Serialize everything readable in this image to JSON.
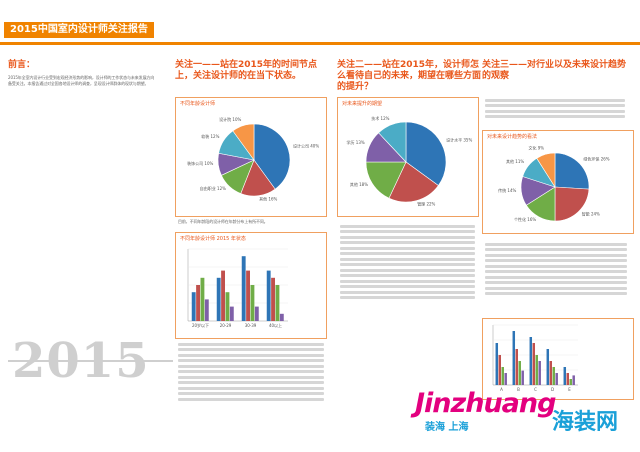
{
  "header": {
    "title": "2015中国室内设计师关注报告"
  },
  "intro": {
    "heading": "前言：",
    "text": "2015年全室内设计行业受到宏观经济形势的影响，设计师的工作状态与未来发展方向备受关注。本报告通过对全国各地设计师的调查，呈现设计师群体的现状与期望。"
  },
  "section1": {
    "heading": "关注一——站在2015年的时间节点上，关注设计师的在当下状态。",
    "caption": "目前，不同年龄段的设计师在年龄分布上有所不同。",
    "chart1_title": "不同年龄设计师",
    "chart2_title": "不同年龄设计师 2015 年状态"
  },
  "section2": {
    "heading": "关注二——站在2015年，设计师怎么看待自己的未来，期望在哪些方面的提升？",
    "chart_title": "对未来提升的期望"
  },
  "section3": {
    "heading": "关注三——对行业以及未来设计趋势的观察",
    "chart1_title": "对未来设计趋势的看法",
    "chart2_title": "未来设计方向"
  },
  "year_block": {
    "year": "2015"
  },
  "watermark": {
    "main": "Jinzhuang",
    "sub": "装海 上海",
    "cn": "海装网"
  },
  "colors": {
    "accent": "#f08300",
    "heading": "#e9571b",
    "blue": "#2e75b6",
    "green": "#70ad47",
    "red": "#c0504d",
    "purple": "#7f60a8",
    "teal": "#4bacc6",
    "orange": "#f79646"
  },
  "chart_data": [
    {
      "type": "pie",
      "categories": [
        "设计公司",
        "其他",
        "自由职业",
        "装饰公司",
        "软装",
        "设计院"
      ],
      "values": [
        40,
        16,
        12,
        10,
        12,
        10
      ]
    },
    {
      "type": "bar",
      "categories": [
        "20岁以下",
        "20-29",
        "30-39",
        "40以上"
      ],
      "series": [
        {
          "values": [
            20,
            30,
            45,
            35
          ]
        },
        {
          "values": [
            25,
            35,
            35,
            30
          ]
        },
        {
          "values": [
            30,
            20,
            25,
            25
          ]
        },
        {
          "values": [
            15,
            10,
            10,
            5
          ]
        }
      ]
    },
    {
      "type": "pie",
      "categories": [
        "设计水平",
        "管理",
        "其他",
        "学历",
        "技术"
      ],
      "values": [
        35,
        22,
        18,
        13,
        12
      ]
    },
    {
      "type": "pie",
      "categories": [
        "绿色环保",
        "智能",
        "个性化",
        "传统",
        "其他",
        "文化"
      ],
      "values": [
        26,
        24,
        16,
        14,
        11,
        9
      ]
    },
    {
      "type": "bar",
      "categories": [
        "A",
        "B",
        "C",
        "D",
        "E"
      ],
      "series": [
        {
          "values": [
            35,
            45,
            40,
            30,
            15
          ]
        },
        {
          "values": [
            25,
            30,
            35,
            20,
            10
          ]
        },
        {
          "values": [
            15,
            20,
            25,
            15,
            5
          ]
        },
        {
          "values": [
            10,
            12,
            20,
            10,
            8
          ]
        }
      ]
    }
  ]
}
